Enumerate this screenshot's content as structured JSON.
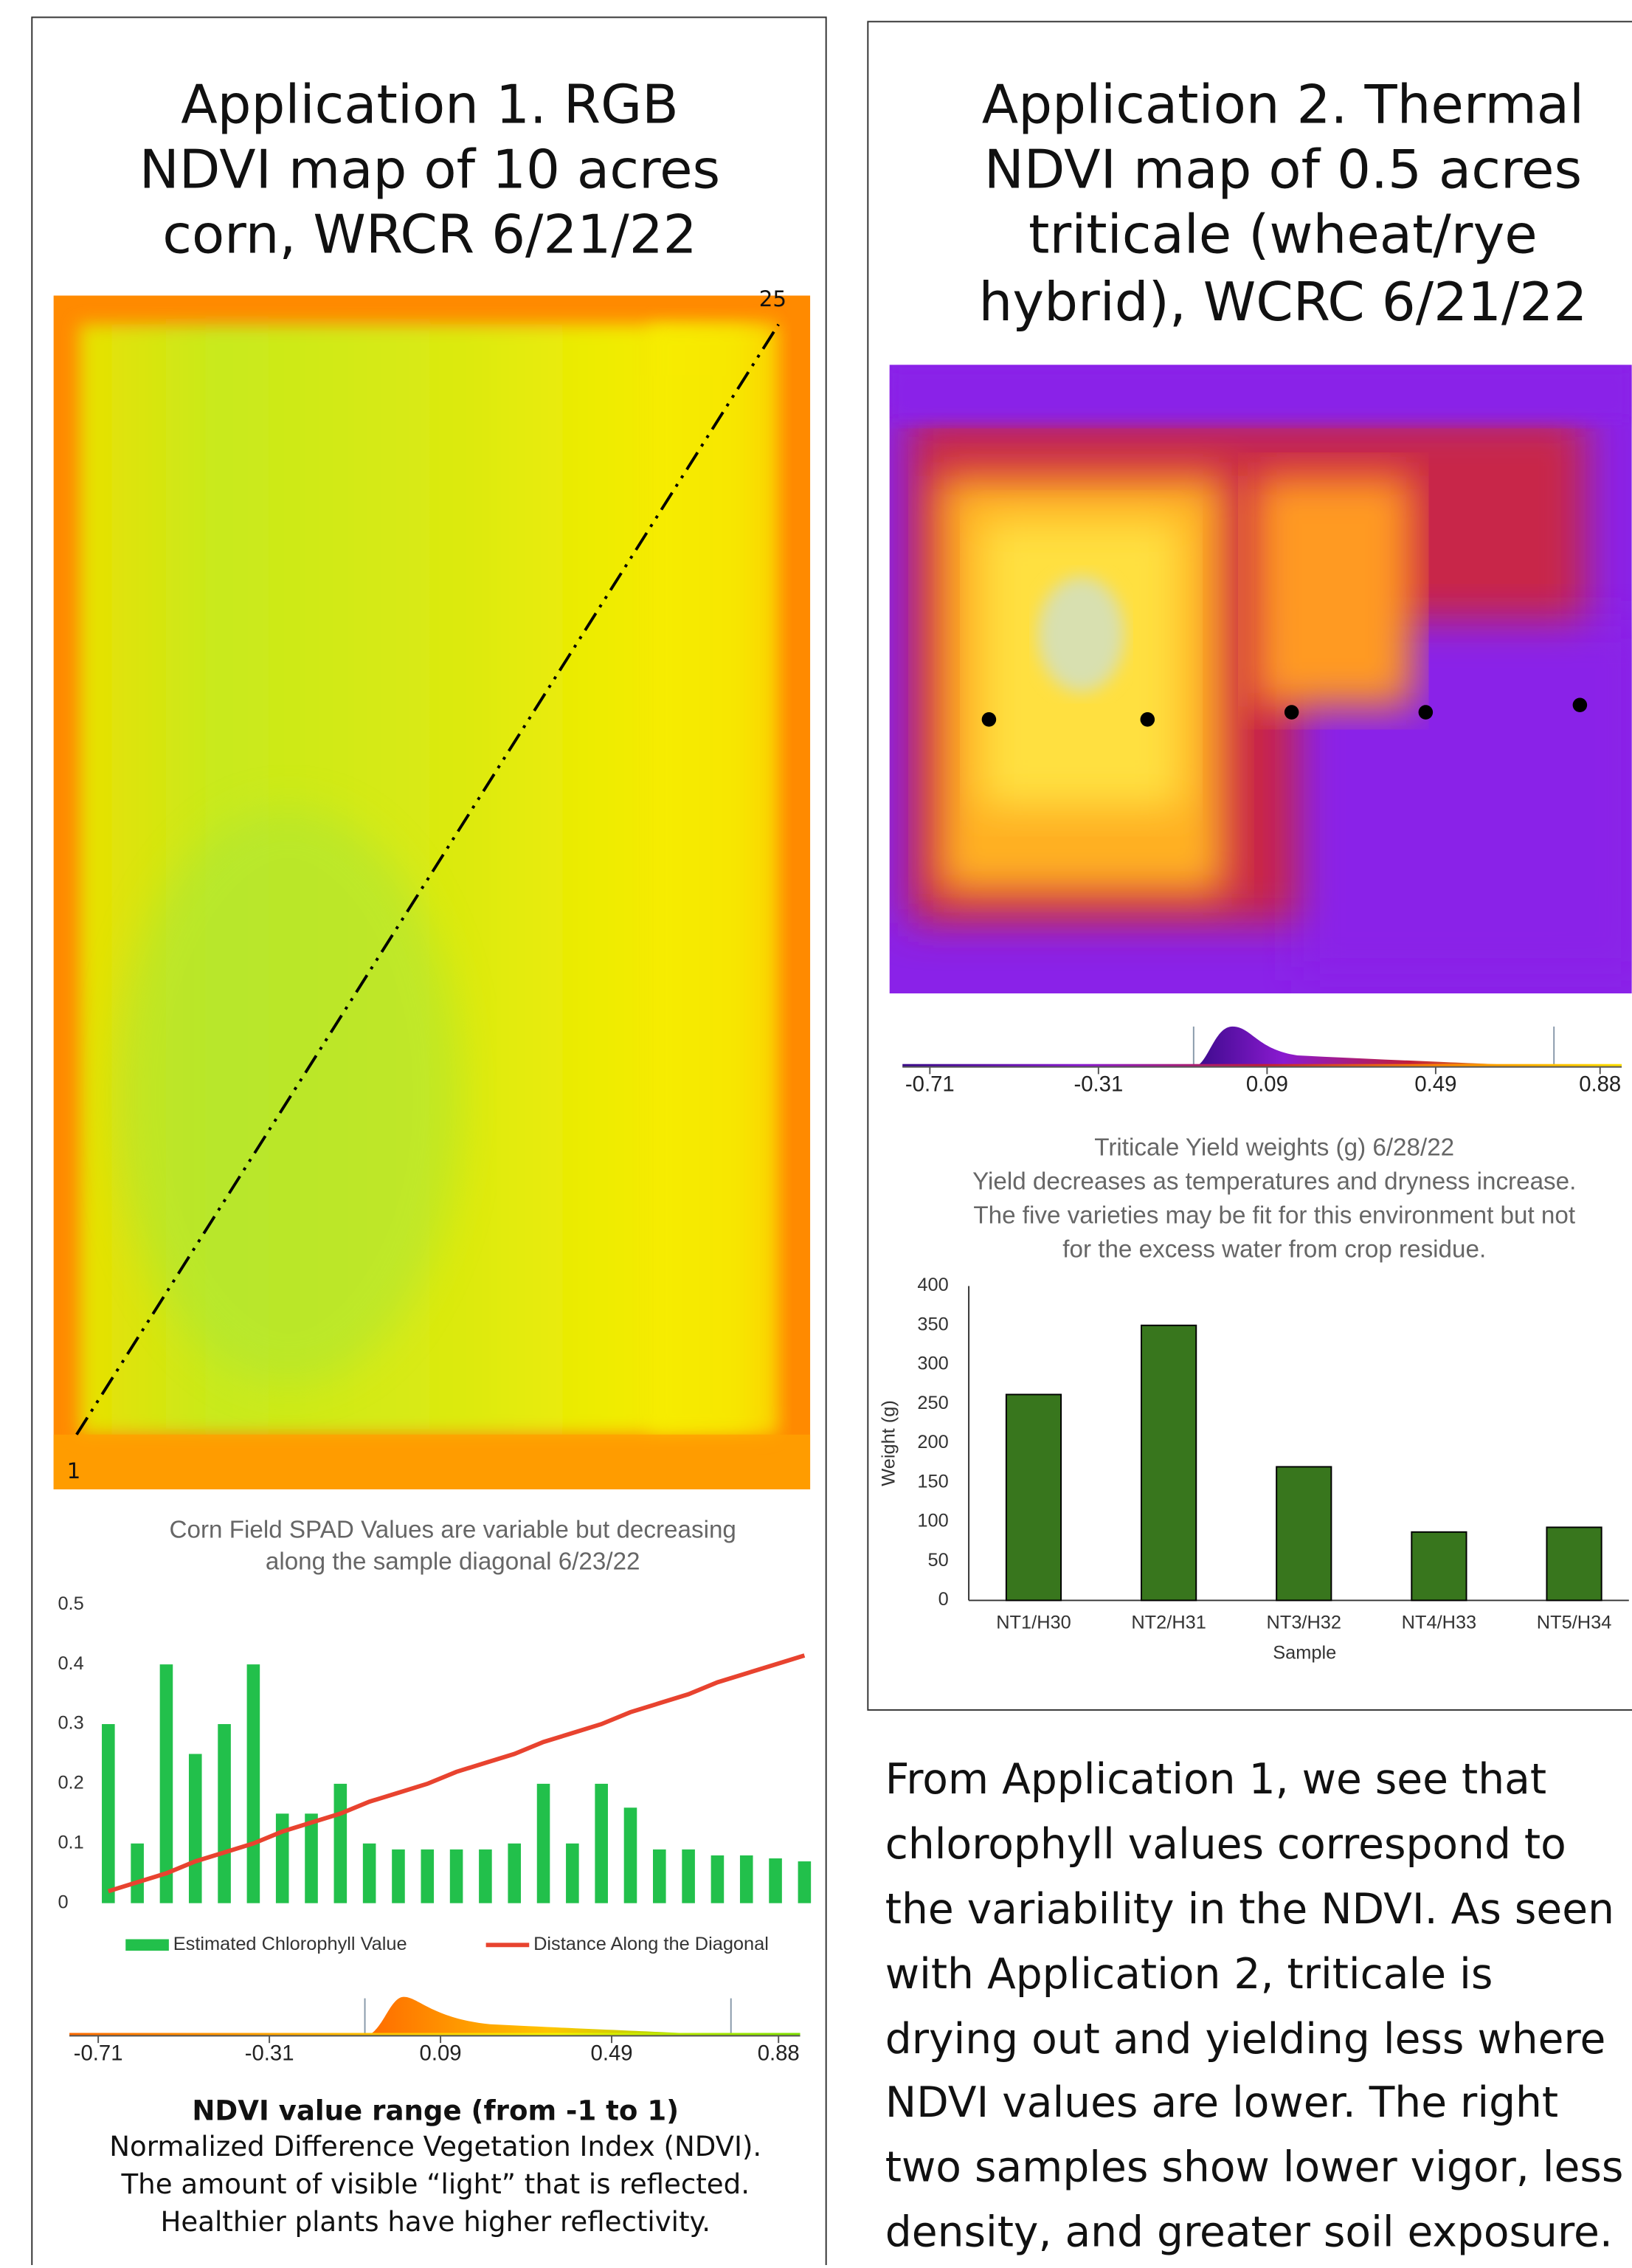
{
  "panel1": {
    "title": [
      "Application 1. RGB",
      "NDVI map of 10 acres",
      "corn, WRCR 6/21/22"
    ],
    "map_labels": [
      "25",
      "1"
    ],
    "caption": {
      "heading": "NDVI value range (from -1 to 1)",
      "lines": [
        "Normalized Difference Vegetation Index (NDVI).",
        "The amount of visible “light” that is reflected.",
        "Healthier plants have higher reflectivity."
      ]
    }
  },
  "panel2": {
    "title": [
      "Application 2. Thermal",
      "NDVI map of 0.5 acres",
      "triticale (wheat/rye",
      "hybrid), WCRC 6/21/22"
    ]
  },
  "body_text": [
    "From Application 1, we see that",
    "chlorophyll values correspond to",
    "the variability in the NDVI. As seen",
    "with Application 2, triticale is",
    "drying out and yielding less where",
    "NDVI values are lower. The right",
    "two samples show lower vigor, less",
    "density, and greater soil exposure."
  ],
  "chart_data": [
    {
      "type": "bar",
      "title": [
        "Corn Field SPAD Values are variable but decreasing",
        "along the sample diagonal 6/23/22"
      ],
      "categories": [
        null,
        null,
        null,
        null,
        null,
        null,
        null,
        null,
        null,
        null,
        null,
        null,
        null,
        null,
        null,
        null,
        null,
        null,
        null,
        null,
        null,
        null,
        null,
        null,
        null
      ],
      "series": [
        {
          "name": "Estimated Chlorophyll Value",
          "color": "#22c04b",
          "type": "bar",
          "values": [
            0.3,
            0.1,
            0.4,
            0.25,
            0.3,
            0.4,
            0.15,
            0.15,
            0.2,
            0.1,
            0.09,
            0.09,
            0.09,
            0.09,
            0.1,
            0.2,
            0.1,
            0.2,
            0.16,
            0.09,
            0.09,
            0.08,
            0.08,
            0.075,
            0.07
          ]
        },
        {
          "name": "Distance Along the Diagonal",
          "color": "#e8432f",
          "type": "line",
          "values": [
            0.02,
            0.035,
            0.05,
            0.07,
            0.085,
            0.1,
            0.12,
            0.135,
            0.15,
            0.17,
            0.185,
            0.2,
            0.22,
            0.235,
            0.25,
            0.27,
            0.285,
            0.3,
            0.32,
            0.335,
            0.35,
            0.37,
            0.385,
            0.4,
            0.415
          ]
        }
      ],
      "ylim": [
        0,
        0.5
      ],
      "yticks": [
        0,
        0.1,
        0.2,
        0.3,
        0.4,
        0.5
      ],
      "grid": false,
      "legend": "bottom"
    },
    {
      "type": "colorbar",
      "xlim": [
        -0.71,
        0.88
      ],
      "xticks": [
        -0.71,
        -0.31,
        0.09,
        0.49,
        0.88
      ],
      "colors": [
        "#ff6a00",
        "#ffb000",
        "#f2f200",
        "#7ee000"
      ]
    },
    {
      "type": "bar",
      "title": [
        "Triticale Yield weights (g) 6/28/22",
        "Yield decreases as temperatures and dryness increase.",
        "The five varieties may be fit for this environment but not",
        "for the excess water from crop residue."
      ],
      "categories": [
        "NT1/H30",
        "NT2/H31",
        "NT3/H32",
        "NT4/H33",
        "NT5/H34"
      ],
      "values": [
        262,
        350,
        170,
        87,
        93
      ],
      "color": "#38761d",
      "ylim": [
        0,
        400
      ],
      "yticks": [
        0,
        50,
        100,
        150,
        200,
        250,
        300,
        350,
        400
      ],
      "y_label": "Weight (g)",
      "x_label": "Sample",
      "grid": false
    },
    {
      "type": "colorbar",
      "xlim": [
        -0.71,
        0.88
      ],
      "xticks": [
        -0.71,
        -0.31,
        0.09,
        0.49,
        0.88
      ],
      "colors": [
        "#3a0a8a",
        "#8a1ad0",
        "#c01e3a",
        "#ff8800",
        "#ffe000"
      ]
    }
  ]
}
